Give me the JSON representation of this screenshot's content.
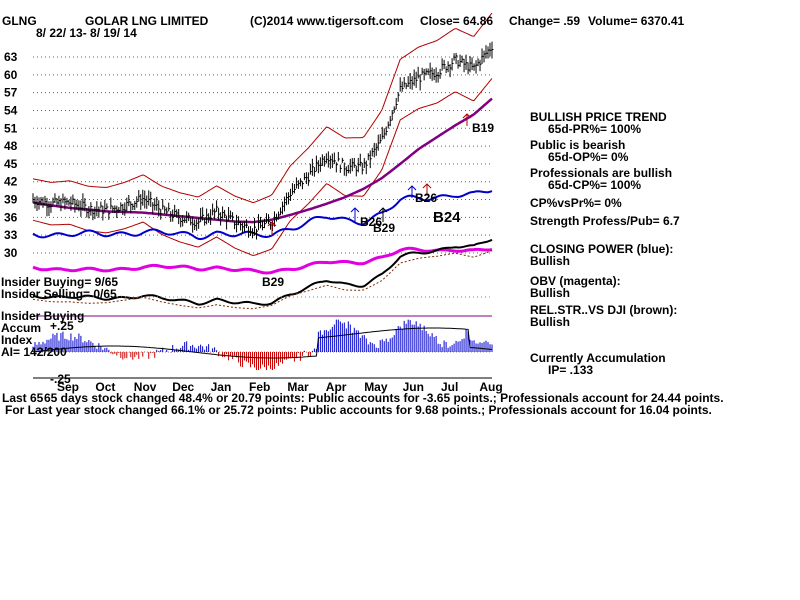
{
  "header": {
    "ticker": "GLNG",
    "company": "GOLAR LNG LIMITED",
    "copyright": "(C)2014 www.tigersoft.com",
    "close": "Close=  64.86",
    "change": "Change= .59",
    "volume": "Volume= 6370.41",
    "date_range": "8/ 22/ 13- 8/ 19/ 14"
  },
  "left_labels": {
    "insider_buying_ratio": "Insider Buying= 9/65",
    "insider_selling_ratio": "Insider Selling= 0/65",
    "insider_buying": "Insider Buying",
    "accum": "Accum",
    "accum_top": "+.25",
    "index": "Index",
    "ai": "AI= 142/200",
    "accum_bottom": "-.25"
  },
  "signals": {
    "s1": "B29",
    "s2": "B26",
    "s3": "B29",
    "s4": "B26",
    "s5": "B24",
    "s6": "B19"
  },
  "right_panel": {
    "l1": "BULLISH PRICE TREND",
    "l2": "65d-PR%= 100%",
    "l3": "Public is bearish",
    "l4": "65d-OP%= 0%",
    "l5": "Professionals are bullish",
    "l6": "65d-CP%= 100%",
    "l7": "CP%vsPr%=  0%",
    "l8": "Strength Profess/Pub= 6.7",
    "l9": "CLOSING POWER (blue):",
    "l10": "Bullish",
    "l11": "OBV (magenta):",
    "l12": "Bullish",
    "l13": "REL.STR..VS DJI (brown):",
    "l14": "Bullish",
    "l15": "Currently Accumulation",
    "l16": "IP=  .133"
  },
  "footer": {
    "line1_prefix": "Last 65",
    "line1": "65 days stock changed  48.4% or  20.79 points:  Public accounts for -3.65 points.;  Professionals account for  24.44 points.",
    "line2": "For Last year stock changed  66.1% or  25.72 points:  Public accounts for  9.68 points.;  Professionals account for  16.04 points."
  },
  "colors": {
    "price": "#000000",
    "bands": "#b00000",
    "ma": "#800080",
    "closing_power": "#0000cc",
    "obv": "#e000e0",
    "rel_strength": "#7a2a00",
    "grid": "#00aa00",
    "accum_pos": "#0000cc",
    "accum_neg": "#cc0000",
    "divider": "#800080"
  },
  "chart_data": {
    "type": "line",
    "title": "GOLAR LNG LIMITED",
    "xlabel": "",
    "ylabel": "",
    "ylim": [
      30,
      65
    ],
    "y_ticks": [
      63,
      60,
      57,
      54,
      51,
      48,
      45,
      42,
      39,
      36,
      33,
      30
    ],
    "months": [
      "Sep",
      "Oct",
      "Nov",
      "Dec",
      "Jan",
      "Feb",
      "Mar",
      "Apr",
      "May",
      "Jun",
      "Jul",
      "Aug"
    ],
    "x": [
      0,
      10,
      20,
      30,
      40,
      50,
      60,
      70,
      80,
      90,
      100,
      110,
      120,
      130,
      140,
      150,
      160,
      170,
      180,
      190,
      200,
      210,
      220,
      230,
      240,
      250
    ],
    "series": [
      {
        "name": "",
        "values": [
          39.0,
          38.3,
          38.5,
          37.5,
          37.2,
          38.0,
          39.2,
          37.2,
          36.0,
          35.2,
          37.0,
          35.2,
          34.0,
          35.2,
          40.0,
          43.0,
          46.5,
          44.5,
          44.5,
          49.0,
          57.5,
          59.5,
          60.5,
          62.5,
          61.0,
          64.9
        ]
      },
      {
        "name": "",
        "values": [
          38.5,
          38.0,
          37.6,
          37.3,
          37.0,
          36.9,
          36.8,
          36.5,
          36.2,
          35.9,
          35.6,
          35.3,
          35.2,
          35.6,
          36.4,
          37.3,
          38.3,
          39.4,
          40.8,
          42.6,
          45.0,
          47.5,
          49.5,
          51.5,
          53.3,
          56.0
        ]
      }
    ]
  }
}
